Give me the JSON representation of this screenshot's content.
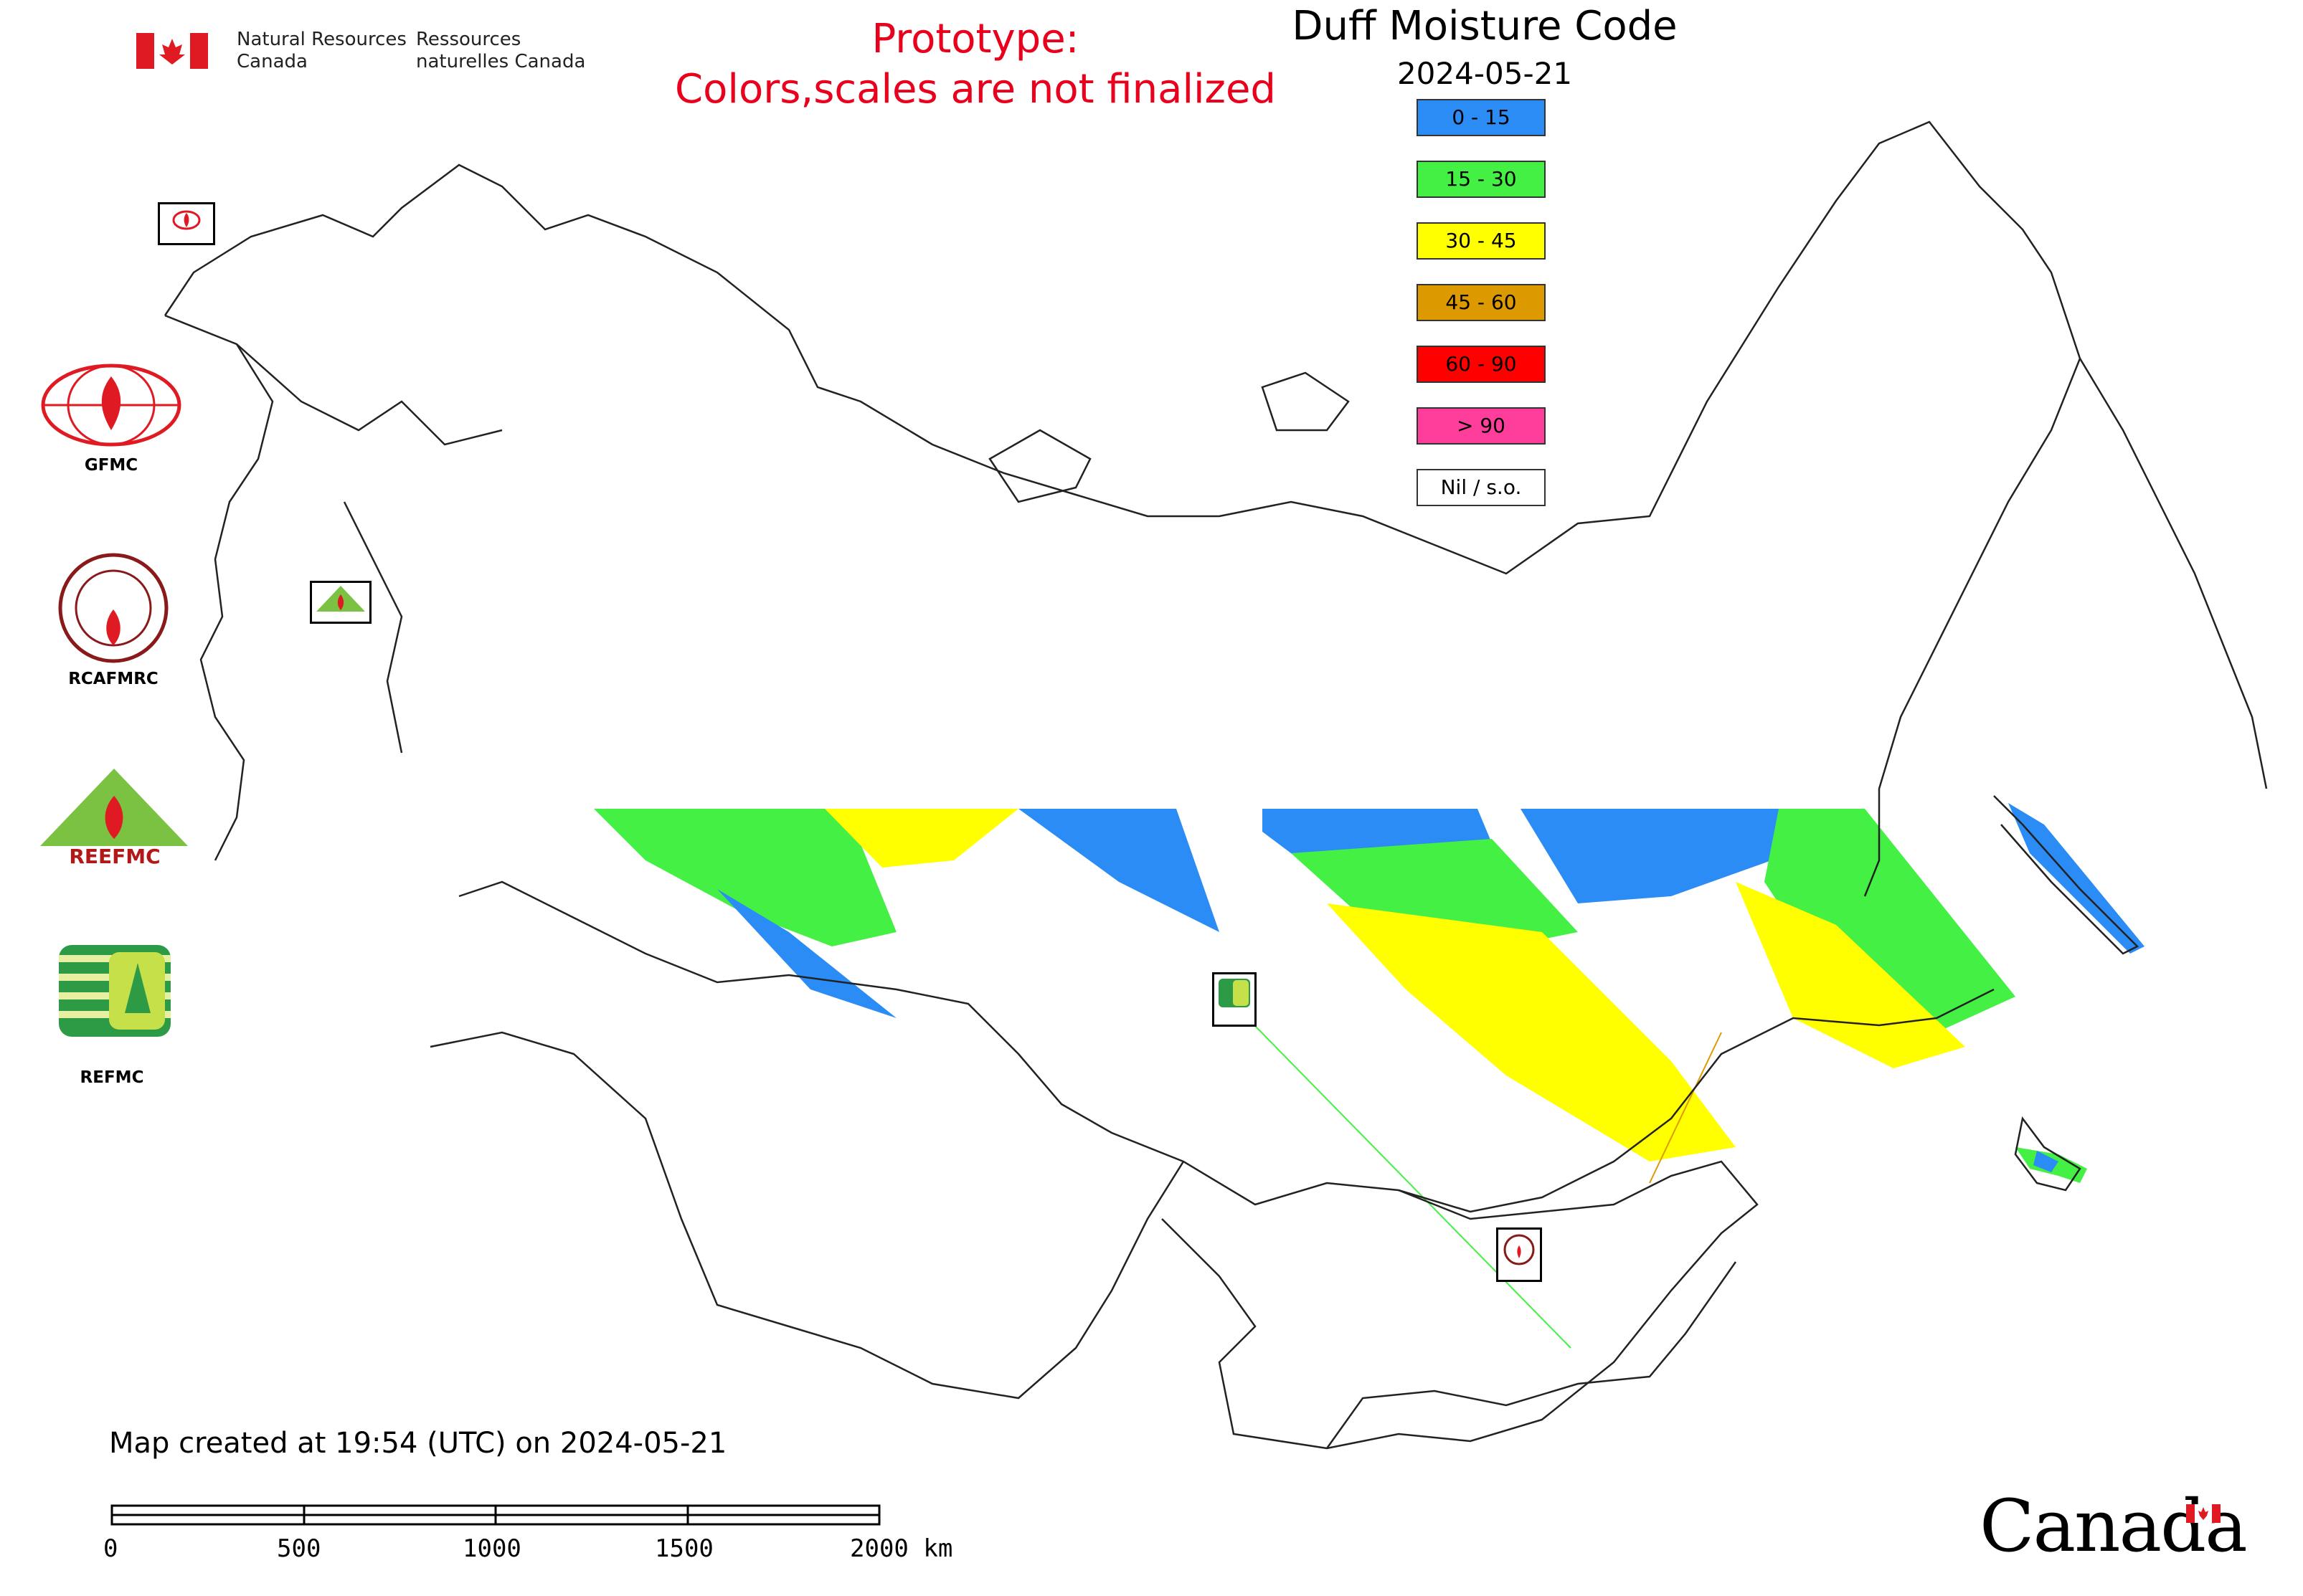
{
  "header": {
    "nrcan_en": "Natural Resources Canada",
    "nrcan_fr": "Ressources naturelles Canada",
    "prototype_line1": "Prototype:",
    "prototype_line2": "Colors,scales are not finalized",
    "title": "Duff Moisture Code",
    "date": "2024-05-21"
  },
  "legend": [
    {
      "label": "0 - 15",
      "color": "#2a8cf4"
    },
    {
      "label": "15 - 30",
      "color": "#44f044"
    },
    {
      "label": "30 - 45",
      "color": "#ffff00"
    },
    {
      "label": "45 - 60",
      "color": "#dd9a00"
    },
    {
      "label": "60 - 90",
      "color": "#ff0000"
    },
    {
      "label": "> 90",
      "color": "#ff3d9a"
    },
    {
      "label": "Nil / s.o.",
      "color": "#ffffff"
    }
  ],
  "logos": [
    {
      "label": "GFMC",
      "icon": "gfmc-logo"
    },
    {
      "label": "RCAFMRC",
      "icon": "rcafmrc-logo"
    },
    {
      "label": "REEFMC",
      "icon": "reefmc-logo"
    },
    {
      "label": "REFMC",
      "icon": "refmc-logo"
    }
  ],
  "map_markers": [
    "GFMC",
    "REEFMC",
    "REFMC",
    "RCAFMRC"
  ],
  "footer": {
    "created": "Map created at 19:54 (UTC) on 2024-05-21",
    "scale_ticks": [
      "0",
      "500",
      "1000",
      "1500",
      "2000 km"
    ],
    "wordmark": "Canada"
  }
}
